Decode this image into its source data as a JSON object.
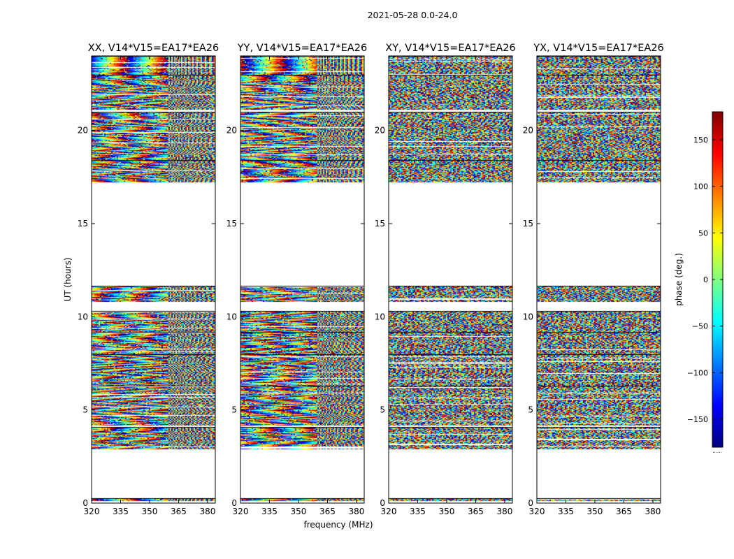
{
  "figure_title": "2021-05-28 0.0-24.0",
  "shared_axes": {
    "xlabel": "frequency (MHz)",
    "ylabel": "UT (hours)",
    "xlim": [
      320,
      384
    ],
    "ylim": [
      0,
      24
    ],
    "x_ticks": [
      320,
      335,
      350,
      365,
      380
    ],
    "y_ticks": [
      0,
      5,
      10,
      15,
      20
    ]
  },
  "colorbar": {
    "label": "phase (deg.)",
    "range": [
      -180,
      180
    ],
    "ticks": [
      150,
      100,
      50,
      0,
      -50,
      -100,
      -150
    ],
    "colormap": [
      "#00007f",
      "#0000ff",
      "#007fff",
      "#00ffff",
      "#7fff7f",
      "#ffff00",
      "#ff7f00",
      "#ff0000",
      "#7f0000"
    ],
    "footnote": "......"
  },
  "chart_data": [
    {
      "type": "heatmap",
      "title": "XX, V14*V15=EA17*EA26",
      "polarization": "XX",
      "pattern": "fringes",
      "xlabel": "",
      "ylabel": "UT (hours)",
      "xlim": [
        320,
        384
      ],
      "ylim": [
        0,
        24
      ],
      "data_ut_blocks": [
        [
          0.1,
          0.25
        ],
        [
          2.9,
          4.1
        ],
        [
          4.15,
          6.3
        ],
        [
          6.3,
          8.0
        ],
        [
          8.0,
          9.2
        ],
        [
          9.2,
          10.3
        ],
        [
          10.8,
          11.65
        ],
        [
          17.2,
          18.4
        ],
        [
          18.4,
          21.0
        ],
        [
          21.1,
          23.0
        ],
        [
          23.0,
          24.0
        ]
      ]
    },
    {
      "type": "heatmap",
      "title": "YY, V14*V15=EA17*EA26",
      "polarization": "YY",
      "pattern": "fringes",
      "xlabel": "frequency (MHz)",
      "ylabel": "",
      "xlim": [
        320,
        384
      ],
      "ylim": [
        0,
        24
      ],
      "data_ut_blocks": [
        [
          0.1,
          0.25
        ],
        [
          2.9,
          4.1
        ],
        [
          4.15,
          6.3
        ],
        [
          6.3,
          8.0
        ],
        [
          8.0,
          9.2
        ],
        [
          9.2,
          10.3
        ],
        [
          10.8,
          11.65
        ],
        [
          17.2,
          18.4
        ],
        [
          18.4,
          21.0
        ],
        [
          21.1,
          23.0
        ],
        [
          23.0,
          24.0
        ]
      ]
    },
    {
      "type": "heatmap",
      "title": "XY, V14*V15=EA17*EA26",
      "polarization": "XY",
      "pattern": "noise",
      "xlabel": "",
      "ylabel": "",
      "xlim": [
        320,
        384
      ],
      "ylim": [
        0,
        24
      ],
      "data_ut_blocks": [
        [
          0.1,
          0.25
        ],
        [
          2.9,
          4.1
        ],
        [
          4.15,
          6.3
        ],
        [
          6.3,
          8.0
        ],
        [
          8.0,
          9.2
        ],
        [
          9.2,
          10.3
        ],
        [
          10.8,
          11.65
        ],
        [
          17.2,
          18.4
        ],
        [
          18.4,
          21.0
        ],
        [
          21.1,
          23.0
        ],
        [
          23.0,
          24.0
        ]
      ]
    },
    {
      "type": "heatmap",
      "title": "YX, V14*V15=EA17*EA26",
      "polarization": "YX",
      "pattern": "noise",
      "xlabel": "",
      "ylabel": "",
      "xlim": [
        320,
        384
      ],
      "ylim": [
        0,
        24
      ],
      "data_ut_blocks": [
        [
          0.1,
          0.25
        ],
        [
          2.9,
          4.1
        ],
        [
          4.15,
          6.3
        ],
        [
          6.3,
          8.0
        ],
        [
          8.0,
          9.2
        ],
        [
          9.2,
          10.3
        ],
        [
          10.8,
          11.65
        ],
        [
          17.2,
          18.4
        ],
        [
          18.4,
          21.0
        ],
        [
          21.1,
          23.0
        ],
        [
          23.0,
          24.0
        ]
      ]
    }
  ]
}
